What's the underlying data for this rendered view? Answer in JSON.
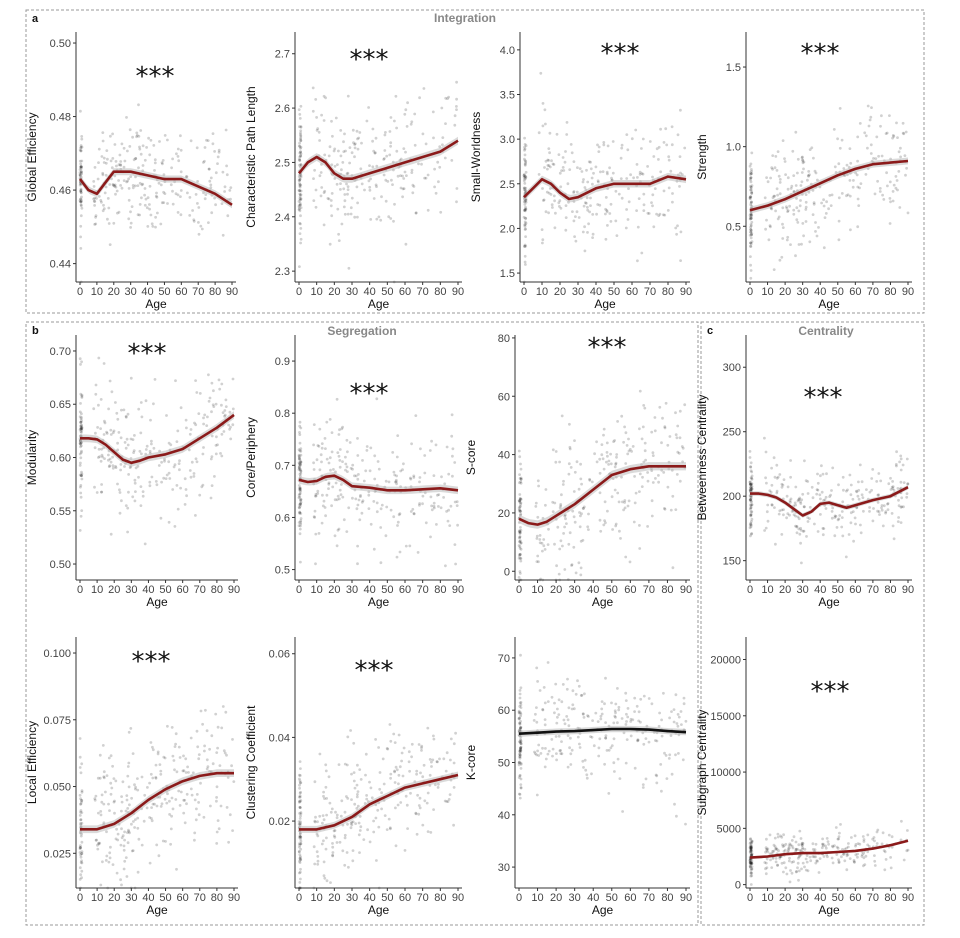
{
  "panels": {
    "a": {
      "letter": "a",
      "title": "Integration"
    },
    "b": {
      "letter": "b",
      "title": "Segregation"
    },
    "c": {
      "letter": "c",
      "title": "Centrality"
    }
  },
  "colors": {
    "trend": "#8b1a1a",
    "trend_ns": "#111111",
    "points": "#000000",
    "band": "#bbbbbb",
    "frame": "#999999"
  },
  "chart_data": [
    {
      "type": "scatter",
      "ylabel": "Global Efficiency",
      "xlabel": "Age",
      "significance": "***",
      "xlim": [
        0,
        90
      ],
      "ylim": [
        0.435,
        0.503
      ],
      "x_ticks": [
        0,
        10,
        20,
        30,
        40,
        50,
        60,
        70,
        80,
        90
      ],
      "x_tick_labels": [
        "0",
        "10",
        "20",
        "30",
        "40",
        "50",
        "60",
        "70",
        "80",
        "90"
      ],
      "y_ticks": [
        0.44,
        0.46,
        0.48,
        0.5
      ],
      "y_tick_labels": [
        "0.44",
        "0.46",
        "0.48",
        "0.50"
      ],
      "trend": {
        "x": [
          0,
          5,
          10,
          15,
          20,
          25,
          30,
          40,
          50,
          60,
          70,
          80,
          90
        ],
        "y": [
          0.463,
          0.46,
          0.459,
          0.462,
          0.465,
          0.465,
          0.465,
          0.464,
          0.463,
          0.463,
          0.461,
          0.459,
          0.456
        ]
      },
      "spread": 0.008
    },
    {
      "type": "scatter",
      "ylabel": "Characteristic Path Length",
      "xlabel": "Age",
      "significance": "***",
      "xlim": [
        0,
        90
      ],
      "ylim": [
        2.28,
        2.74
      ],
      "x_ticks": [
        0,
        10,
        20,
        30,
        40,
        50,
        60,
        70,
        80,
        90
      ],
      "x_tick_labels": [
        "0",
        "10",
        "20",
        "30",
        "40",
        "50",
        "60",
        "70",
        "80",
        "90"
      ],
      "y_ticks": [
        2.3,
        2.4,
        2.5,
        2.6,
        2.7
      ],
      "y_tick_labels": [
        "2.3",
        "2.4",
        "2.5",
        "2.6",
        "2.7"
      ],
      "trend": {
        "x": [
          0,
          5,
          10,
          15,
          20,
          25,
          30,
          40,
          50,
          60,
          70,
          80,
          90
        ],
        "y": [
          2.48,
          2.5,
          2.51,
          2.5,
          2.48,
          2.47,
          2.47,
          2.48,
          2.49,
          2.5,
          2.51,
          2.52,
          2.54
        ]
      },
      "spread": 0.06
    },
    {
      "type": "scatter",
      "ylabel": "Small-Worldness",
      "xlabel": "Age",
      "significance": "***",
      "xlim": [
        0,
        90
      ],
      "ylim": [
        1.4,
        4.2
      ],
      "x_ticks": [
        0,
        10,
        20,
        30,
        40,
        50,
        60,
        70,
        80,
        90
      ],
      "x_tick_labels": [
        "0",
        "10",
        "20",
        "30",
        "40",
        "50",
        "60",
        "70",
        "80",
        "90"
      ],
      "y_ticks": [
        1.5,
        2.0,
        2.5,
        3.0,
        3.5,
        4.0
      ],
      "y_tick_labels": [
        "1.5",
        "2.0",
        "2.5",
        "3.0",
        "3.5",
        "4.0"
      ],
      "trend": {
        "x": [
          0,
          5,
          10,
          15,
          20,
          25,
          30,
          40,
          50,
          60,
          70,
          80,
          90
        ],
        "y": [
          2.35,
          2.45,
          2.55,
          2.5,
          2.4,
          2.33,
          2.35,
          2.45,
          2.5,
          2.5,
          2.5,
          2.58,
          2.55
        ]
      },
      "spread": 0.35
    },
    {
      "type": "scatter",
      "ylabel": "Strength",
      "xlabel": "Age",
      "significance": "***",
      "xlim": [
        0,
        90
      ],
      "ylim": [
        0.15,
        1.72
      ],
      "x_ticks": [
        0,
        10,
        20,
        30,
        40,
        50,
        60,
        70,
        80,
        90
      ],
      "x_tick_labels": [
        "0",
        "10",
        "20",
        "30",
        "40",
        "50",
        "60",
        "70",
        "80",
        "90"
      ],
      "y_ticks": [
        0.5,
        1.0,
        1.5
      ],
      "y_tick_labels": [
        "0.5",
        "1.0",
        "1.5"
      ],
      "trend": {
        "x": [
          0,
          10,
          20,
          30,
          40,
          50,
          60,
          70,
          80,
          90
        ],
        "y": [
          0.6,
          0.63,
          0.67,
          0.72,
          0.77,
          0.82,
          0.86,
          0.89,
          0.9,
          0.91
        ]
      },
      "spread": 0.18
    },
    {
      "type": "scatter",
      "ylabel": "Modularity",
      "xlabel": "Age",
      "significance": "***",
      "xlim": [
        0,
        90
      ],
      "ylim": [
        0.485,
        0.715
      ],
      "x_ticks": [
        0,
        10,
        20,
        30,
        40,
        50,
        60,
        70,
        80,
        90
      ],
      "x_tick_labels": [
        "0",
        "10",
        "20",
        "30",
        "40",
        "50",
        "60",
        "70",
        "80",
        "90"
      ],
      "y_ticks": [
        0.5,
        0.55,
        0.6,
        0.65,
        0.7
      ],
      "y_tick_labels": [
        "0.50",
        "0.55",
        "0.60",
        "0.65",
        "0.70"
      ],
      "trend": {
        "x": [
          0,
          5,
          10,
          15,
          20,
          25,
          30,
          35,
          40,
          50,
          60,
          70,
          80,
          90
        ],
        "y": [
          0.618,
          0.618,
          0.617,
          0.612,
          0.605,
          0.598,
          0.595,
          0.597,
          0.6,
          0.603,
          0.608,
          0.618,
          0.628,
          0.64
        ]
      },
      "spread": 0.03
    },
    {
      "type": "scatter",
      "ylabel": "Core/Periphery",
      "xlabel": "Age",
      "significance": "***",
      "xlim": [
        0,
        90
      ],
      "ylim": [
        0.48,
        0.95
      ],
      "x_ticks": [
        0,
        10,
        20,
        30,
        40,
        50,
        60,
        70,
        80,
        90
      ],
      "x_tick_labels": [
        "0",
        "10",
        "20",
        "30",
        "40",
        "50",
        "60",
        "70",
        "80",
        "90"
      ],
      "y_ticks": [
        0.5,
        0.6,
        0.7,
        0.8,
        0.9
      ],
      "y_tick_labels": [
        "0.5",
        "0.6",
        "0.7",
        "0.8",
        "0.9"
      ],
      "trend": {
        "x": [
          0,
          5,
          10,
          15,
          20,
          25,
          30,
          40,
          50,
          60,
          70,
          80,
          90
        ],
        "y": [
          0.672,
          0.668,
          0.67,
          0.678,
          0.68,
          0.672,
          0.66,
          0.657,
          0.652,
          0.652,
          0.654,
          0.656,
          0.652
        ]
      },
      "spread": 0.06
    },
    {
      "type": "scatter",
      "ylabel": "S-core",
      "xlabel": "Age",
      "significance": "***",
      "xlim": [
        0,
        90
      ],
      "ylim": [
        -3,
        81
      ],
      "x_ticks": [
        0,
        10,
        20,
        30,
        40,
        50,
        60,
        70,
        80,
        90
      ],
      "x_tick_labels": [
        "0",
        "10",
        "20",
        "30",
        "40",
        "50",
        "60",
        "70",
        "80",
        "90"
      ],
      "y_ticks": [
        0,
        20,
        40,
        60,
        80
      ],
      "y_tick_labels": [
        "0",
        "20",
        "40",
        "60",
        "80"
      ],
      "trend": {
        "x": [
          0,
          5,
          10,
          15,
          20,
          30,
          40,
          50,
          60,
          70,
          80,
          90
        ],
        "y": [
          18,
          16.5,
          16,
          17,
          19,
          23,
          28,
          33,
          35,
          36,
          36,
          36
        ]
      },
      "spread": 12
    },
    {
      "type": "scatter",
      "ylabel": "Betweenness Centrality",
      "xlabel": "Age",
      "significance": "***",
      "xlim": [
        0,
        90
      ],
      "ylim": [
        135,
        325
      ],
      "x_ticks": [
        0,
        10,
        20,
        30,
        40,
        50,
        60,
        70,
        80,
        90
      ],
      "x_tick_labels": [
        "0",
        "10",
        "20",
        "30",
        "40",
        "50",
        "60",
        "70",
        "80",
        "90"
      ],
      "y_ticks": [
        150,
        200,
        250,
        300
      ],
      "y_tick_labels": [
        "150",
        "200",
        "250",
        "300"
      ],
      "trend": {
        "x": [
          0,
          5,
          10,
          15,
          20,
          25,
          30,
          35,
          40,
          45,
          50,
          55,
          60,
          70,
          80,
          90
        ],
        "y": [
          202,
          202,
          201,
          199,
          195,
          190,
          185,
          188,
          194,
          195,
          193,
          191,
          193,
          197,
          200,
          207
        ]
      },
      "spread": 15
    },
    {
      "type": "scatter",
      "ylabel": "Local Efficiency",
      "xlabel": "Age",
      "significance": "***",
      "xlim": [
        0,
        90
      ],
      "ylim": [
        0.012,
        0.106
      ],
      "x_ticks": [
        0,
        10,
        20,
        30,
        40,
        50,
        60,
        70,
        80,
        90
      ],
      "x_tick_labels": [
        "0",
        "10",
        "20",
        "30",
        "40",
        "50",
        "60",
        "70",
        "80",
        "90"
      ],
      "y_ticks": [
        0.025,
        0.05,
        0.075,
        0.1
      ],
      "y_tick_labels": [
        "0.025",
        "0.050",
        "0.075",
        "0.100"
      ],
      "trend": {
        "x": [
          0,
          10,
          20,
          30,
          40,
          50,
          60,
          70,
          80,
          90
        ],
        "y": [
          0.034,
          0.034,
          0.036,
          0.04,
          0.045,
          0.049,
          0.052,
          0.054,
          0.055,
          0.055
        ]
      },
      "spread": 0.012
    },
    {
      "type": "scatter",
      "ylabel": "Clustering Coefficient",
      "xlabel": "Age",
      "significance": "***",
      "xlim": [
        0,
        90
      ],
      "ylim": [
        0.004,
        0.064
      ],
      "x_ticks": [
        0,
        10,
        20,
        30,
        40,
        50,
        60,
        70,
        80,
        90
      ],
      "x_tick_labels": [
        "0",
        "10",
        "20",
        "30",
        "40",
        "50",
        "60",
        "70",
        "80",
        "90"
      ],
      "y_ticks": [
        0.02,
        0.04,
        0.06
      ],
      "y_tick_labels": [
        "0.02",
        "0.04",
        "0.06"
      ],
      "trend": {
        "x": [
          0,
          10,
          20,
          30,
          40,
          50,
          60,
          70,
          80,
          90
        ],
        "y": [
          0.018,
          0.018,
          0.019,
          0.021,
          0.024,
          0.026,
          0.028,
          0.029,
          0.03,
          0.031
        ]
      },
      "spread": 0.007
    },
    {
      "type": "scatter",
      "ylabel": "K-core",
      "xlabel": "Age",
      "significance": "",
      "xlim": [
        0,
        90
      ],
      "ylim": [
        26,
        74
      ],
      "x_ticks": [
        0,
        10,
        20,
        30,
        40,
        50,
        60,
        70,
        80,
        90
      ],
      "x_tick_labels": [
        "0",
        "10",
        "20",
        "30",
        "40",
        "50",
        "60",
        "70",
        "80",
        "90"
      ],
      "y_ticks": [
        30,
        40,
        50,
        60,
        70
      ],
      "y_tick_labels": [
        "30",
        "40",
        "50",
        "60",
        "70"
      ],
      "trend": {
        "x": [
          0,
          10,
          20,
          30,
          40,
          50,
          60,
          70,
          80,
          90
        ],
        "y": [
          55.5,
          55.7,
          55.9,
          56.0,
          56.2,
          56.4,
          56.4,
          56.3,
          56.0,
          55.8
        ]
      },
      "spread": 5
    },
    {
      "type": "scatter",
      "ylabel": "Subgraph Centrality",
      "xlabel": "Age",
      "significance": "***",
      "xlim": [
        0,
        90
      ],
      "ylim": [
        -300,
        22000
      ],
      "x_ticks": [
        0,
        10,
        20,
        30,
        40,
        50,
        60,
        70,
        80,
        90
      ],
      "x_tick_labels": [
        "0",
        "10",
        "20",
        "30",
        "40",
        "50",
        "60",
        "70",
        "80",
        "90"
      ],
      "y_ticks": [
        0,
        5000,
        10000,
        15000,
        20000
      ],
      "y_tick_labels": [
        "0",
        "5000",
        "10000",
        "15000",
        "20000"
      ],
      "trend": {
        "x": [
          0,
          10,
          20,
          30,
          40,
          50,
          60,
          70,
          80,
          90
        ],
        "y": [
          2400,
          2500,
          2700,
          2800,
          2800,
          2900,
          3000,
          3200,
          3500,
          3900
        ]
      },
      "spread": 900
    }
  ]
}
